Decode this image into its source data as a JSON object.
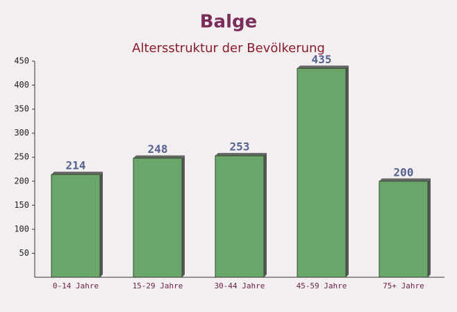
{
  "chart_data": {
    "type": "bar",
    "title": "Balge",
    "subtitle": "Altersstruktur der Bevölkerung",
    "categories": [
      "0-14 Jahre",
      "15-29 Jahre",
      "30-44 Jahre",
      "45-59 Jahre",
      "75+ Jahre"
    ],
    "values": [
      214,
      248,
      253,
      435,
      200
    ],
    "color": "#6aa56a",
    "ylim": [
      0,
      450
    ],
    "yticks": [
      50,
      100,
      150,
      200,
      250,
      300,
      350,
      400,
      450
    ]
  }
}
